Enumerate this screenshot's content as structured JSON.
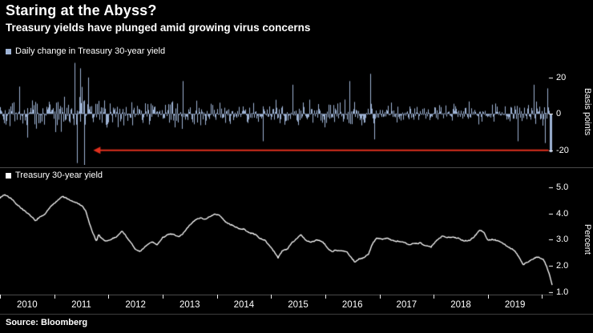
{
  "header": {
    "title": "Staring at the Abyss?",
    "subtitle": "Treasury yields have plunged amid growing virus concerns"
  },
  "source": "Source: Bloomberg",
  "colors": {
    "background": "#000000",
    "bar": "#9fb4d6",
    "line": "#ffffff",
    "arrow": "#e0301e",
    "divider": "#4a4a4a",
    "axis_text": "#ffffff"
  },
  "x_axis": {
    "years": [
      "2010",
      "2011",
      "2012",
      "2013",
      "2014",
      "2015",
      "2016",
      "2017",
      "2018",
      "2019"
    ],
    "start": 2010,
    "end": 2020.2
  },
  "chart_data": [
    {
      "type": "bar",
      "legend": "Daily change in Treasury 30-year yield",
      "ylabel": "Basis points",
      "color": "#9fb4d6",
      "ylim": [
        -20,
        20
      ],
      "plot_range": [
        -28,
        30
      ],
      "yticks": [
        20,
        0,
        -20
      ],
      "ytick_labels": [
        "20",
        "0",
        "-20"
      ],
      "seed": 42,
      "volatility_by_year": [
        6.5,
        8.5,
        5.5,
        5.5,
        4.5,
        5.0,
        5.5,
        3.8,
        4.2,
        5.0
      ],
      "spikes": [
        [
          2010.35,
          15
        ],
        [
          2010.5,
          -13
        ],
        [
          2011.38,
          28
        ],
        [
          2011.42,
          -27
        ],
        [
          2011.48,
          25
        ],
        [
          2011.55,
          -28
        ],
        [
          2011.62,
          20
        ],
        [
          2013.37,
          18
        ],
        [
          2014.85,
          -15
        ],
        [
          2015.4,
          16
        ],
        [
          2016.45,
          18
        ],
        [
          2016.83,
          22
        ],
        [
          2016.9,
          -14
        ],
        [
          2019.55,
          -15
        ],
        [
          2019.85,
          16
        ],
        [
          2020.05,
          -16
        ],
        [
          2020.1,
          14
        ]
      ],
      "last_value": -21,
      "annotation": {
        "type": "arrow",
        "y": -20,
        "x_from": 2020.12,
        "x_to": 2011.72,
        "color": "#e0301e"
      }
    },
    {
      "type": "line",
      "legend": "Treasury 30-year yield",
      "ylabel": "Percent",
      "color": "#ffffff",
      "ylim": [
        1.0,
        5.0
      ],
      "plot_range": [
        0.9,
        5.15
      ],
      "yticks": [
        5.0,
        4.0,
        3.0,
        2.0,
        1.0
      ],
      "ytick_labels": [
        "5.0",
        "4.0",
        "3.0",
        "2.0",
        "1.0"
      ],
      "seed": 7,
      "points": [
        [
          2010.0,
          4.6
        ],
        [
          2010.08,
          4.72
        ],
        [
          2010.2,
          4.62
        ],
        [
          2010.3,
          4.4
        ],
        [
          2010.42,
          4.2
        ],
        [
          2010.55,
          3.95
        ],
        [
          2010.65,
          3.7
        ],
        [
          2010.7,
          3.8
        ],
        [
          2010.8,
          3.9
        ],
        [
          2010.9,
          4.15
        ],
        [
          2011.0,
          4.4
        ],
        [
          2011.08,
          4.55
        ],
        [
          2011.15,
          4.65
        ],
        [
          2011.3,
          4.5
        ],
        [
          2011.4,
          4.4
        ],
        [
          2011.5,
          4.3
        ],
        [
          2011.58,
          4.1
        ],
        [
          2011.65,
          3.6
        ],
        [
          2011.72,
          3.2
        ],
        [
          2011.78,
          2.9
        ],
        [
          2011.82,
          3.15
        ],
        [
          2011.88,
          3.0
        ],
        [
          2011.95,
          2.9
        ],
        [
          2012.05,
          3.0
        ],
        [
          2012.15,
          3.1
        ],
        [
          2012.25,
          3.3
        ],
        [
          2012.32,
          3.15
        ],
        [
          2012.42,
          2.85
        ],
        [
          2012.5,
          2.6
        ],
        [
          2012.58,
          2.55
        ],
        [
          2012.7,
          2.75
        ],
        [
          2012.8,
          2.9
        ],
        [
          2012.9,
          2.8
        ],
        [
          2013.0,
          3.05
        ],
        [
          2013.1,
          3.15
        ],
        [
          2013.2,
          3.2
        ],
        [
          2013.3,
          3.1
        ],
        [
          2013.4,
          3.3
        ],
        [
          2013.5,
          3.6
        ],
        [
          2013.6,
          3.75
        ],
        [
          2013.7,
          3.85
        ],
        [
          2013.8,
          3.8
        ],
        [
          2013.9,
          3.9
        ],
        [
          2013.97,
          3.95
        ],
        [
          2014.05,
          3.9
        ],
        [
          2014.15,
          3.65
        ],
        [
          2014.3,
          3.55
        ],
        [
          2014.4,
          3.45
        ],
        [
          2014.5,
          3.4
        ],
        [
          2014.6,
          3.25
        ],
        [
          2014.7,
          3.2
        ],
        [
          2014.8,
          3.05
        ],
        [
          2014.9,
          2.95
        ],
        [
          2015.0,
          2.7
        ],
        [
          2015.08,
          2.45
        ],
        [
          2015.13,
          2.3
        ],
        [
          2015.2,
          2.55
        ],
        [
          2015.3,
          2.65
        ],
        [
          2015.4,
          2.9
        ],
        [
          2015.5,
          3.1
        ],
        [
          2015.55,
          3.2
        ],
        [
          2015.65,
          2.95
        ],
        [
          2015.75,
          2.9
        ],
        [
          2015.85,
          3.0
        ],
        [
          2015.95,
          2.95
        ],
        [
          2016.05,
          2.7
        ],
        [
          2016.12,
          2.6
        ],
        [
          2016.2,
          2.65
        ],
        [
          2016.3,
          2.6
        ],
        [
          2016.4,
          2.55
        ],
        [
          2016.5,
          2.25
        ],
        [
          2016.55,
          2.12
        ],
        [
          2016.62,
          2.25
        ],
        [
          2016.7,
          2.3
        ],
        [
          2016.8,
          2.45
        ],
        [
          2016.88,
          2.85
        ],
        [
          2016.95,
          3.05
        ],
        [
          2017.05,
          3.0
        ],
        [
          2017.15,
          3.05
        ],
        [
          2017.25,
          2.95
        ],
        [
          2017.35,
          2.9
        ],
        [
          2017.45,
          2.85
        ],
        [
          2017.55,
          2.75
        ],
        [
          2017.65,
          2.85
        ],
        [
          2017.75,
          2.9
        ],
        [
          2017.85,
          2.8
        ],
        [
          2017.95,
          2.72
        ],
        [
          2018.05,
          2.95
        ],
        [
          2018.15,
          3.1
        ],
        [
          2018.25,
          3.05
        ],
        [
          2018.35,
          3.1
        ],
        [
          2018.45,
          3.08
        ],
        [
          2018.55,
          2.98
        ],
        [
          2018.65,
          3.0
        ],
        [
          2018.75,
          3.15
        ],
        [
          2018.85,
          3.4
        ],
        [
          2018.92,
          3.3
        ],
        [
          2019.0,
          3.0
        ],
        [
          2019.1,
          3.02
        ],
        [
          2019.2,
          2.98
        ],
        [
          2019.3,
          2.85
        ],
        [
          2019.4,
          2.7
        ],
        [
          2019.5,
          2.55
        ],
        [
          2019.6,
          2.25
        ],
        [
          2019.65,
          2.05
        ],
        [
          2019.72,
          2.15
        ],
        [
          2019.8,
          2.25
        ],
        [
          2019.9,
          2.35
        ],
        [
          2019.97,
          2.3
        ],
        [
          2020.02,
          2.25
        ],
        [
          2020.06,
          2.1
        ],
        [
          2020.1,
          1.9
        ],
        [
          2020.14,
          1.65
        ],
        [
          2020.17,
          1.4
        ],
        [
          2020.2,
          1.18
        ]
      ]
    }
  ]
}
